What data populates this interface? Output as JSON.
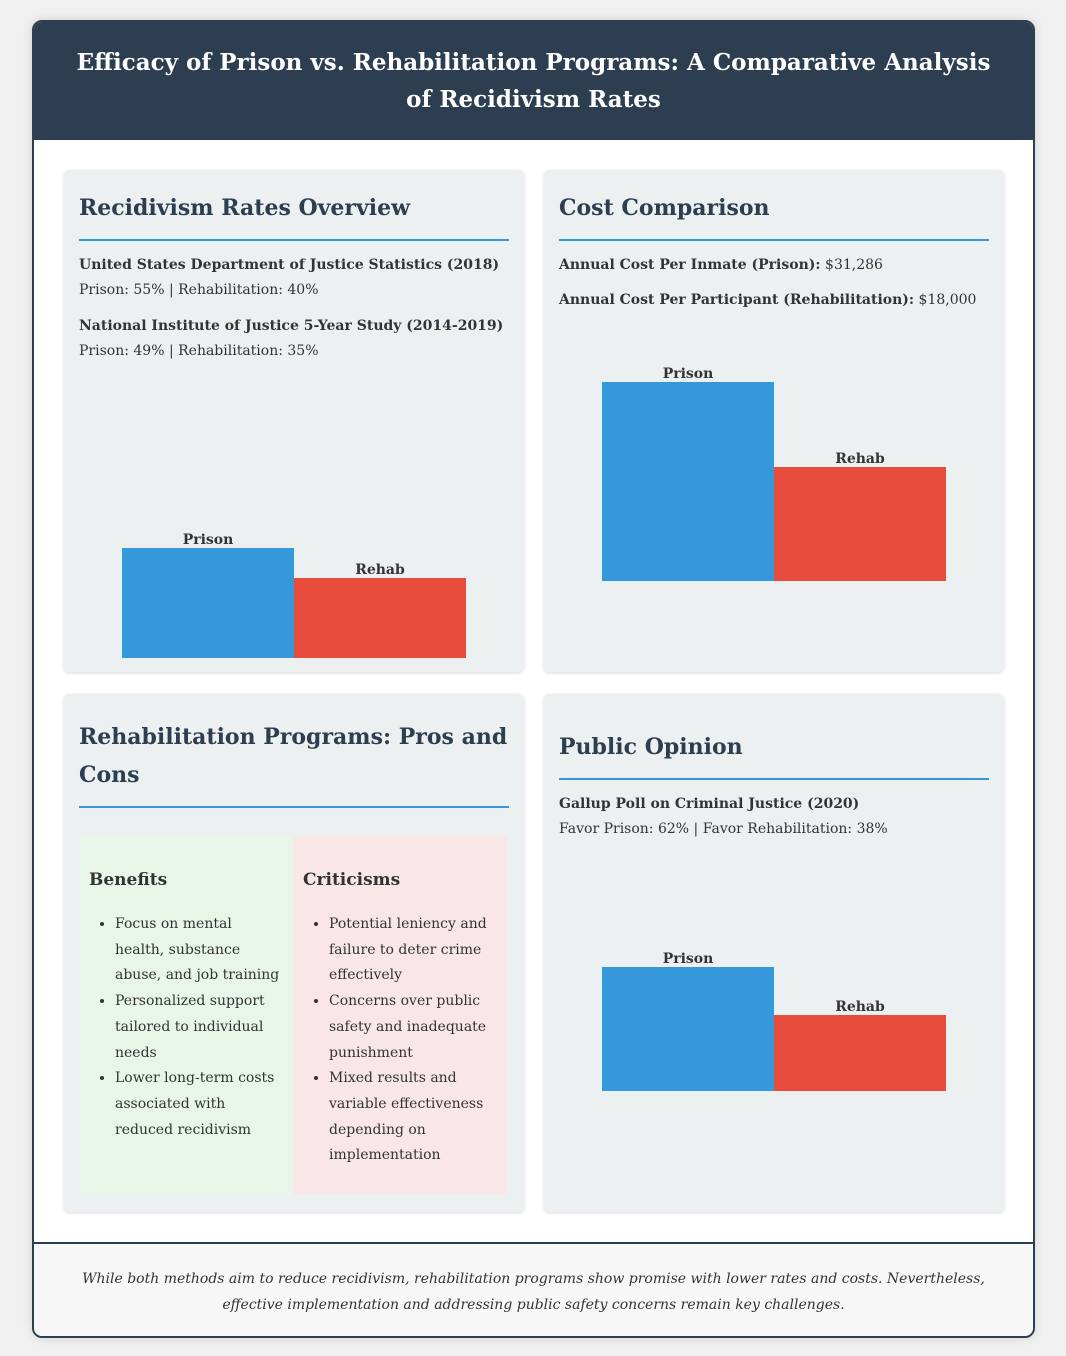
{
  "title": "Efficacy of Prison vs. Rehabilitation Programs: A Comparative Analysis of Recidivism Rates",
  "recidivism": {
    "heading": "Recidivism Rates Overview",
    "doj_source": "United States Department of Justice Statistics (2018)",
    "doj_values": "Prison: 55% | Rehabilitation: 40%",
    "nij_source": "National Institute of Justice 5-Year Study (2014-2019)",
    "nij_values": "Prison: 49% | Rehabilitation: 35%"
  },
  "cost": {
    "heading": "Cost Comparison",
    "prison_label": "Annual Cost Per Inmate (Prison):",
    "prison_value": "$31,286",
    "rehab_label": "Annual Cost Per Participant (Rehabilitation):",
    "rehab_value": "$18,000"
  },
  "proscons": {
    "heading": "Rehabilitation Programs: Pros and Cons",
    "benefits_heading": "Benefits",
    "benefits": [
      "Focus on mental health, substance abuse, and job training",
      "Personalized support tailored to individual needs",
      "Lower long-term costs associated with reduced recidivism"
    ],
    "criticisms_heading": "Criticisms",
    "criticisms": [
      "Potential leniency and failure to deter crime effectively",
      "Concerns over public safety and inadequate punishment",
      "Mixed results and variable effectiveness depending on implementation"
    ]
  },
  "opinion": {
    "heading": "Public Opinion",
    "source": "Gallup Poll on Criminal Justice (2020)",
    "values": "Favor Prison: 62% | Favor Rehabilitation: 38%"
  },
  "footer": "While both methods aim to reduce recidivism, rehabilitation programs show promise with lower rates and costs. Nevertheless, effective implementation and addressing public safety concerns remain key challenges.",
  "colors": {
    "prison": "#3498db",
    "rehab": "#e74c3c",
    "header": "#2c3e50"
  },
  "chart_data": [
    {
      "type": "bar",
      "categories": [
        "Prison",
        "Rehab"
      ],
      "values": [
        55,
        40
      ]
    },
    {
      "type": "bar",
      "categories": [
        "Prison",
        "Rehab"
      ],
      "values": [
        31286,
        18000
      ]
    },
    {
      "type": "bar",
      "categories": [
        "Prison",
        "Rehab"
      ],
      "values": [
        62,
        38
      ]
    }
  ]
}
